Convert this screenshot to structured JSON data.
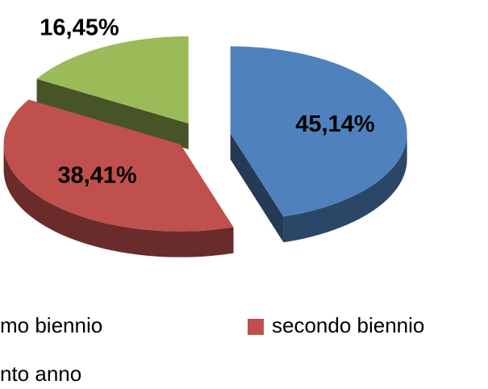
{
  "chart_data": {
    "type": "pie",
    "categories": [
      "mo biennio",
      "secondo biennio",
      "nto anno"
    ],
    "values": [
      45.14,
      38.41,
      16.45
    ],
    "value_labels": [
      "45,14%",
      "38,41%",
      "16,45%"
    ],
    "colors": [
      "#4f81bd",
      "#c0504d",
      "#9bbb59"
    ],
    "exploded": true,
    "three_d": true
  }
}
